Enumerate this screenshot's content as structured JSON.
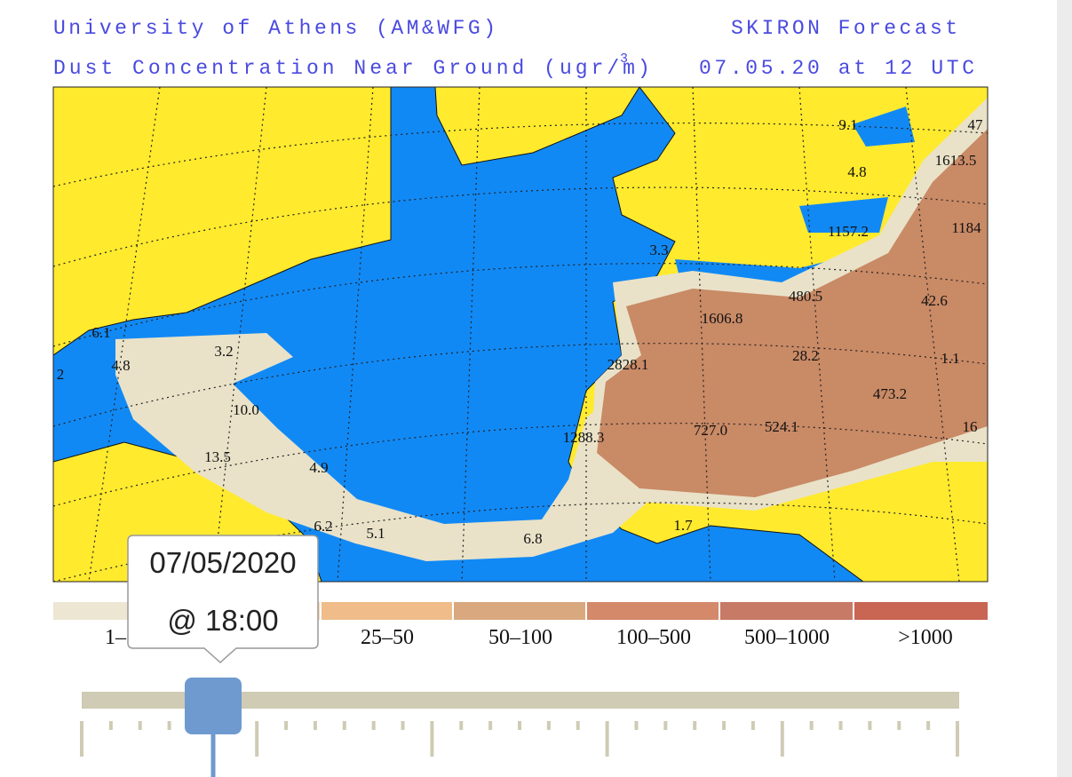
{
  "header": {
    "institution": "University of Athens (AM&WFG)",
    "product": "SKIRON Forecast",
    "variable": "Dust Concentration Near Ground (ugr/m",
    "unit_exponent": "3",
    "variable_close": ")",
    "valid_time": "07.05.20 at 12 UTC"
  },
  "map": {
    "labels": [
      "9.1",
      "47",
      "1613.5",
      "4.8",
      "1184",
      "1157.2",
      "3.3",
      "480.5",
      "42.6",
      "1606.8",
      "28.2",
      "2828.1",
      "1.1",
      "473.2",
      "6.1",
      "4.8",
      "2",
      "10.0",
      "3.2",
      "1288.3",
      "727.0",
      "524.1",
      "16",
      "13.5",
      "4.9",
      "6.2",
      "5.1",
      "6.8",
      "1.7"
    ]
  },
  "legend": {
    "labels": [
      "1–",
      "25–50",
      "50–100",
      "100–500",
      "500–1000",
      ">1000"
    ]
  },
  "tooltip": {
    "date": "07/05/2020",
    "time": "@ 18:00"
  }
}
